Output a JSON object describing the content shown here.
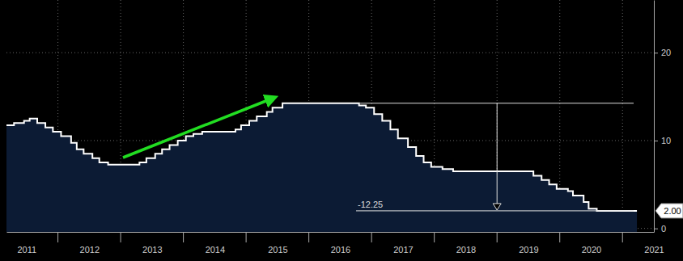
{
  "chart_data": {
    "type": "line",
    "line_style": "step",
    "color": "#ffffff",
    "grid": true,
    "x": [
      2011.18,
      2011.3,
      2011.46,
      2011.55,
      2011.67,
      2011.8,
      2011.92,
      2012.05,
      2012.21,
      2012.3,
      2012.41,
      2012.55,
      2012.66,
      2012.8,
      2013.3,
      2013.41,
      2013.55,
      2013.66,
      2013.78,
      2013.91,
      2014.04,
      2014.16,
      2014.3,
      2014.83,
      2014.92,
      2015.05,
      2015.17,
      2015.33,
      2015.42,
      2015.58,
      2016.8,
      2016.91,
      2017.04,
      2017.17,
      2017.3,
      2017.42,
      2017.58,
      2017.71,
      2017.83,
      2017.95,
      2018.13,
      2018.3,
      2019.58,
      2019.71,
      2019.83,
      2019.95,
      2020.13,
      2020.21,
      2020.38,
      2020.46,
      2020.59,
      2021.23
    ],
    "values": [
      11.75,
      12.0,
      12.25,
      12.5,
      12.0,
      11.5,
      11.0,
      10.5,
      9.75,
      9.0,
      8.5,
      8.0,
      7.5,
      7.25,
      7.5,
      8.0,
      8.5,
      9.0,
      9.5,
      10.0,
      10.5,
      10.75,
      11.0,
      11.25,
      11.75,
      12.25,
      12.75,
      13.25,
      13.75,
      14.25,
      14.0,
      13.75,
      13.0,
      12.25,
      11.25,
      10.25,
      9.25,
      8.25,
      7.5,
      7.0,
      6.75,
      6.5,
      6.0,
      5.5,
      5.0,
      4.5,
      4.25,
      3.75,
      3.0,
      2.25,
      2.0,
      2.0
    ],
    "xlim": [
      2011.18,
      2021.5
    ],
    "xticks": [
      {
        "value": 2011.5,
        "label": "2011"
      },
      {
        "value": 2012.5,
        "label": "2012"
      },
      {
        "value": 2013.5,
        "label": "2013"
      },
      {
        "value": 2014.5,
        "label": "2014"
      },
      {
        "value": 2015.5,
        "label": "2015"
      },
      {
        "value": 2016.5,
        "label": "2016"
      },
      {
        "value": 2017.5,
        "label": "2017"
      },
      {
        "value": 2018.5,
        "label": "2018"
      },
      {
        "value": 2019.5,
        "label": "2019"
      },
      {
        "value": 2020.5,
        "label": "2020"
      },
      {
        "value": 2021.5,
        "label": "2021"
      }
    ],
    "ylim": [
      -0.4,
      26
    ],
    "yticks": [
      0,
      10,
      20
    ],
    "annotation": {
      "text": "-12.25",
      "from": 14.25,
      "to": 2.0,
      "x": 2019.0
    },
    "last_value": {
      "value": 2.0,
      "label": "2.00"
    }
  }
}
